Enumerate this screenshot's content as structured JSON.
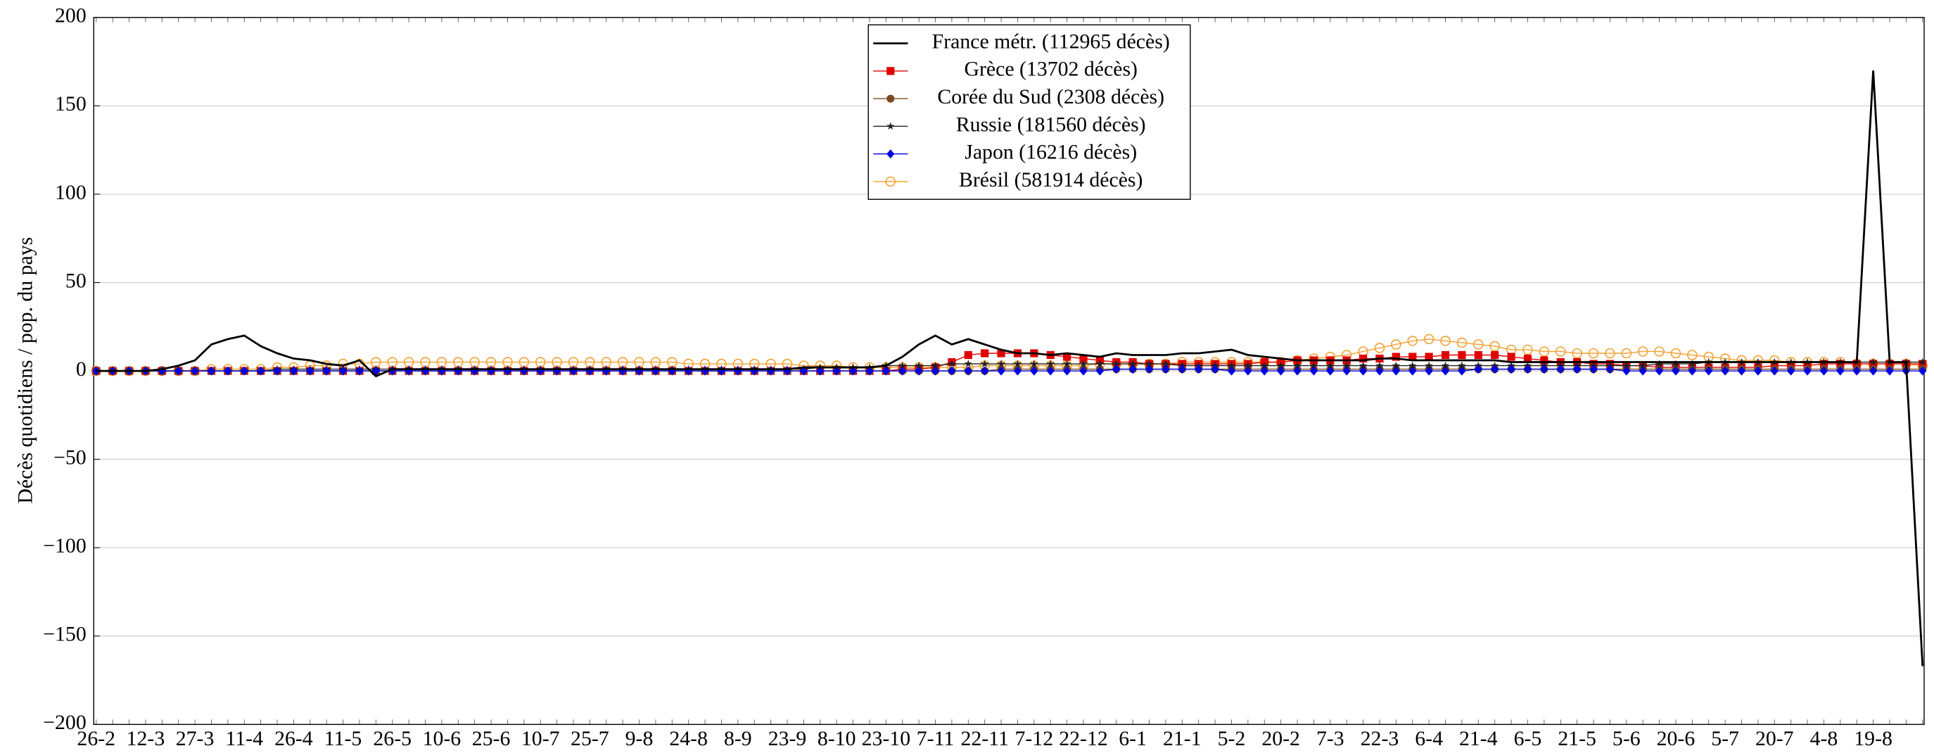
{
  "chart_data": {
    "type": "line",
    "ylabel": "Décès quotidiens / pop. du pays",
    "categories": [
      "26-2",
      null,
      null,
      "12-3",
      null,
      null,
      "27-3",
      null,
      null,
      "11-4",
      null,
      null,
      "26-4",
      null,
      null,
      "11-5",
      null,
      null,
      "26-5",
      null,
      null,
      "10-6",
      null,
      null,
      "25-6",
      null,
      null,
      "10-7",
      null,
      null,
      "25-7",
      null,
      null,
      "9-8",
      null,
      null,
      "24-8",
      null,
      null,
      "8-9",
      null,
      null,
      "23-9",
      null,
      null,
      "8-10",
      null,
      null,
      "23-10",
      null,
      null,
      "7-11",
      null,
      null,
      "22-11",
      null,
      null,
      "7-12",
      null,
      null,
      "22-12",
      null,
      null,
      "6-1",
      null,
      null,
      "21-1",
      null,
      null,
      "5-2",
      null,
      null,
      "20-2",
      null,
      null,
      "7-3",
      null,
      null,
      "22-3",
      null,
      null,
      "6-4",
      null,
      null,
      "21-4",
      null,
      null,
      "6-5",
      null,
      null,
      "21-5",
      null,
      null,
      "5-6",
      null,
      null,
      "20-6",
      null,
      null,
      "5-7",
      null,
      null,
      "20-7",
      null,
      null,
      "4-8",
      null,
      null,
      "19-8",
      null,
      null,
      null
    ],
    "ylim": [
      -200,
      200
    ],
    "yticks": [
      {
        "value": -200,
        "label": "−200"
      },
      {
        "value": -150,
        "label": "−150"
      },
      {
        "value": -100,
        "label": "−100"
      },
      {
        "value": -50,
        "label": "−50"
      },
      0,
      50,
      100,
      150,
      200
    ],
    "grid": true,
    "legend": "top",
    "series": [
      {
        "name": "France métr. (112965 décès)",
        "color": "#000000",
        "marker": "none",
        "values": [
          0,
          0,
          0,
          0,
          1,
          3,
          6,
          15,
          18,
          20,
          14,
          10,
          7,
          6,
          4,
          3,
          6,
          -3,
          1,
          1,
          1,
          1,
          1,
          1,
          1,
          1,
          1,
          1,
          1,
          1,
          1,
          1,
          1,
          1,
          1,
          1,
          1,
          1,
          1,
          1,
          1,
          1,
          1,
          2,
          2,
          2,
          2,
          2,
          3,
          8,
          15,
          20,
          15,
          18,
          15,
          12,
          10,
          10,
          9,
          10,
          9,
          8,
          10,
          9,
          9,
          9,
          10,
          10,
          11,
          12,
          9,
          8,
          7,
          6,
          6,
          6,
          6,
          6,
          7,
          7,
          6,
          6,
          6,
          6,
          6,
          6,
          5,
          5,
          5,
          5,
          5,
          5,
          5,
          5,
          5,
          5,
          5,
          5,
          5,
          5,
          5,
          5,
          5,
          5,
          5,
          5,
          5,
          5,
          170,
          5,
          5,
          -167
        ]
      },
      {
        "name": "Grèce (13702 décès)",
        "color": "#e00000",
        "marker": "square",
        "values": [
          0,
          0,
          0,
          0,
          0,
          0,
          0,
          0,
          0,
          0,
          0,
          0,
          0,
          0,
          0,
          0,
          0,
          0,
          0,
          0,
          0,
          0,
          0,
          0,
          0,
          0,
          0,
          0,
          0,
          0,
          0,
          0,
          0,
          0,
          0,
          0,
          0,
          0,
          0,
          0,
          0,
          0,
          0,
          0,
          0,
          0,
          0,
          0,
          0,
          1,
          1,
          2,
          5,
          9,
          10,
          10,
          10,
          10,
          9,
          8,
          7,
          6,
          5,
          5,
          4,
          4,
          4,
          4,
          4,
          4,
          4,
          5,
          5,
          6,
          6,
          6,
          6,
          7,
          7,
          8,
          8,
          8,
          9,
          9,
          9,
          9,
          8,
          7,
          6,
          5,
          5,
          4,
          4,
          3,
          3,
          2,
          2,
          2,
          2,
          2,
          2,
          2,
          3,
          3,
          3,
          4,
          4,
          4,
          4,
          4,
          4,
          4
        ]
      },
      {
        "name": "Corée du Sud (2308 décès)",
        "color": "#7b4a1e",
        "marker": "circle",
        "values": [
          0,
          0,
          0,
          0,
          0,
          0,
          0,
          0,
          0,
          0,
          0,
          0,
          0,
          0,
          0,
          0,
          0,
          0,
          0,
          0,
          0,
          0,
          0,
          0,
          0,
          0,
          0,
          0,
          0,
          0,
          0,
          0,
          0,
          0,
          0,
          0,
          0,
          0,
          0,
          0,
          0,
          0,
          0,
          0,
          0,
          0,
          0,
          0,
          0,
          0,
          0,
          0,
          0,
          0,
          0,
          1,
          1,
          1,
          1,
          1,
          1,
          1,
          1,
          1,
          1,
          1,
          1,
          1,
          1,
          1,
          1,
          1,
          1,
          1,
          1,
          1,
          1,
          1,
          1,
          1,
          1,
          1,
          1,
          1,
          1,
          1,
          1,
          1,
          1,
          1,
          1,
          1,
          1,
          1,
          1,
          1,
          1,
          1,
          1,
          1,
          1,
          1,
          1,
          1,
          1,
          1,
          1,
          1,
          1,
          1,
          1,
          1
        ]
      },
      {
        "name": "Russie (181560 décès)",
        "color": "#202020",
        "marker": "star",
        "values": [
          0,
          0,
          0,
          0,
          0,
          0,
          0,
          0,
          0,
          0,
          0,
          1,
          1,
          1,
          1,
          1,
          1,
          1,
          1,
          1,
          1,
          1,
          1,
          1,
          1,
          1,
          1,
          1,
          1,
          1,
          1,
          1,
          1,
          1,
          1,
          1,
          1,
          1,
          1,
          1,
          1,
          1,
          1,
          1,
          2,
          2,
          2,
          2,
          3,
          3,
          3,
          3,
          4,
          4,
          4,
          4,
          4,
          4,
          4,
          4,
          4,
          4,
          4,
          4,
          4,
          4,
          3,
          3,
          3,
          3,
          3,
          3,
          3,
          3,
          3,
          3,
          3,
          3,
          3,
          3,
          3,
          3,
          3,
          3,
          3,
          3,
          3,
          3,
          3,
          3,
          3,
          3,
          3,
          3,
          3,
          4,
          4,
          4,
          5,
          5,
          5,
          5,
          5,
          5,
          5,
          5,
          5,
          5,
          5,
          5,
          5,
          5
        ]
      },
      {
        "name": "Japon (16216 décès)",
        "color": "#0000e0",
        "marker": "diamond",
        "values": [
          0,
          0,
          0,
          0,
          0,
          0,
          0,
          0,
          0,
          0,
          0,
          0,
          0,
          0,
          0,
          0,
          0,
          0,
          0,
          0,
          0,
          0,
          0,
          0,
          0,
          0,
          0,
          0,
          0,
          0,
          0,
          0,
          0,
          0,
          0,
          0,
          0,
          0,
          0,
          0,
          0,
          0,
          0,
          0,
          0,
          0,
          0,
          0,
          0,
          0,
          0,
          0,
          0,
          0,
          0,
          0,
          0,
          0,
          0,
          0,
          0,
          0,
          1,
          1,
          1,
          1,
          1,
          1,
          1,
          0,
          0,
          0,
          0,
          0,
          0,
          0,
          0,
          0,
          0,
          0,
          0,
          0,
          0,
          0,
          1,
          1,
          1,
          1,
          1,
          1,
          1,
          1,
          1,
          0,
          0,
          0,
          0,
          0,
          0,
          0,
          0,
          0,
          0,
          0,
          0,
          0,
          0,
          0,
          0,
          0,
          0,
          0
        ]
      },
      {
        "name": "Brésil (581914 décès)",
        "color": "#f5a030",
        "marker": "open-circle",
        "values": [
          0,
          0,
          0,
          0,
          0,
          0,
          0,
          1,
          1,
          1,
          1,
          2,
          2,
          3,
          3,
          4,
          4,
          5,
          5,
          5,
          5,
          5,
          5,
          5,
          5,
          5,
          5,
          5,
          5,
          5,
          5,
          5,
          5,
          5,
          5,
          5,
          4,
          4,
          4,
          4,
          4,
          4,
          4,
          3,
          3,
          3,
          2,
          2,
          2,
          2,
          2,
          2,
          2,
          2,
          3,
          3,
          3,
          3,
          3,
          3,
          3,
          4,
          4,
          4,
          4,
          4,
          5,
          5,
          5,
          5,
          5,
          5,
          5,
          6,
          7,
          8,
          9,
          11,
          13,
          15,
          17,
          18,
          17,
          16,
          15,
          14,
          12,
          12,
          11,
          11,
          10,
          10,
          10,
          10,
          11,
          11,
          10,
          9,
          8,
          7,
          6,
          6,
          6,
          5,
          5,
          5,
          5,
          4,
          4,
          4,
          4,
          3
        ]
      }
    ]
  }
}
